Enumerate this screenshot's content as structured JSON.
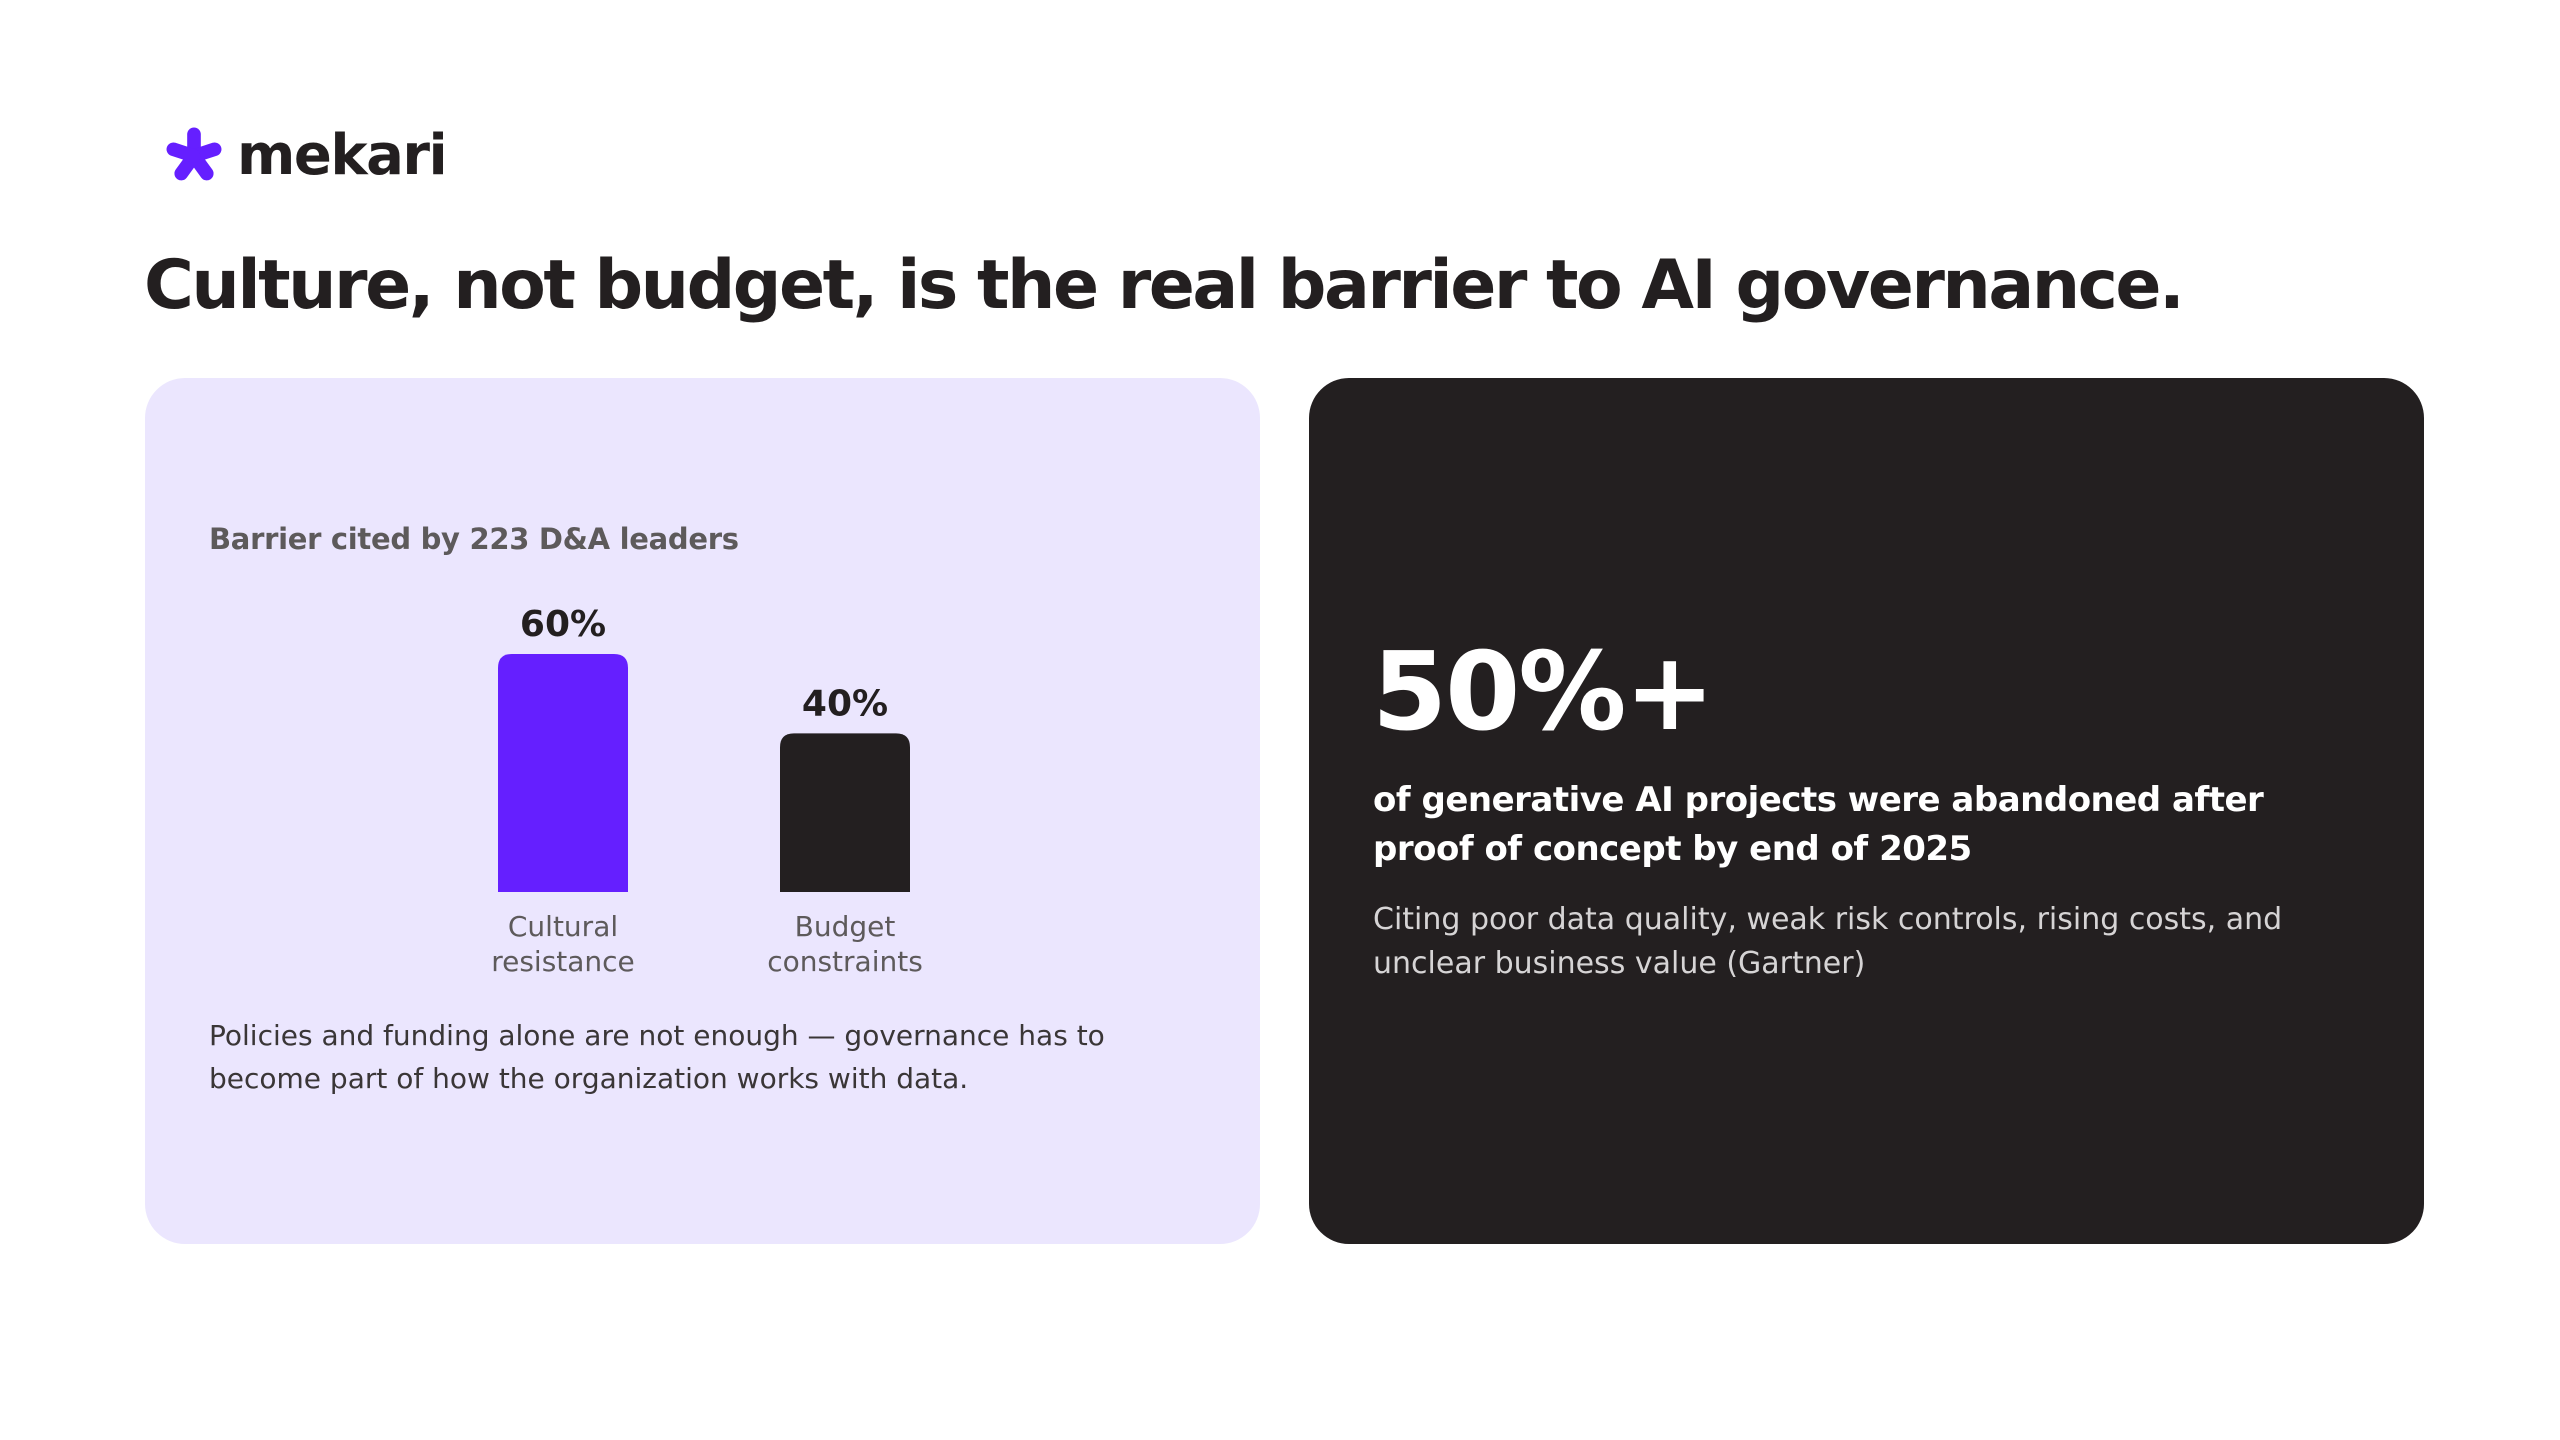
{
  "brand": {
    "name": "mekari",
    "accent_color": "#651fff",
    "dark_color": "#231f20"
  },
  "headline": "Culture, not budget, is the real barrier to AI governance.",
  "left_card": {
    "chart_label": "Barrier cited by 223 D&A leaders",
    "footnote": "Policies and funding alone are not enough — governance has to become part of how the organization works with data."
  },
  "chart_data": {
    "type": "bar",
    "categories": [
      [
        "Cultural",
        "resistance"
      ],
      [
        "Budget",
        "constraints"
      ]
    ],
    "values": [
      60,
      40
    ],
    "value_labels": [
      "60%",
      "40%"
    ],
    "colors": [
      "#651fff",
      "#231f20"
    ],
    "title": "Barrier cited by 223 D&A leaders",
    "xlabel": "",
    "ylabel": "",
    "ylim": [
      0,
      60
    ],
    "grid": false
  },
  "right_card": {
    "big_stat": "50%+",
    "description": "of generative AI projects were abandoned after proof of concept by end of 2025",
    "source": "Citing poor data quality, weak risk controls, rising costs, and unclear business value (Gartner)"
  }
}
